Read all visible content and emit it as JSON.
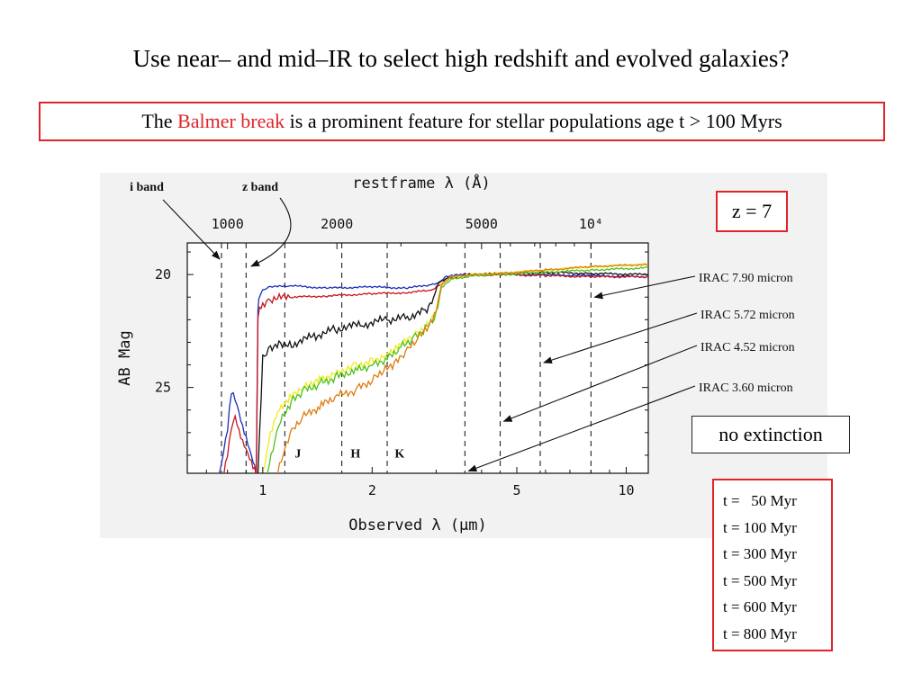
{
  "slide": {
    "title": "Use near– and mid–IR to select high redshift and evolved galaxies?",
    "balmer": {
      "prefix": "The ",
      "highlight": "Balmer break",
      "suffix": " is a prominent feature for stellar populations age t > 100 Myrs"
    },
    "redshift_label": "z = 7",
    "extinction_label": "no extinction",
    "age_legend": [
      "t =   50 Myr",
      "t = 100 Myr",
      "t = 300 Myr",
      "t = 500 Myr",
      "t = 600 Myr",
      "t = 800 Myr"
    ]
  },
  "colors": {
    "accent_red": "#e0242a",
    "panel_bg": "#f2f2f2"
  },
  "chart_data": {
    "type": "line",
    "title": "",
    "xlabel": "Observed λ (μm)",
    "ylabel": "AB Mag",
    "top_axis_label": "restframe λ (Å)",
    "xscale": "log",
    "xlim": [
      0.62,
      11.5
    ],
    "ylim": [
      28.8,
      18.6
    ],
    "x_ticks": [
      1,
      2,
      5,
      10
    ],
    "x_tick_labels": [
      "1",
      "2",
      "5",
      "10"
    ],
    "y_ticks": [
      20,
      25
    ],
    "y_tick_labels": [
      "20",
      "25"
    ],
    "top_ticks_angstrom": [
      1000,
      2000,
      5000,
      10000
    ],
    "top_tick_labels": [
      "1000",
      "2000",
      "5000",
      "10⁴"
    ],
    "redshift": 7,
    "band_lines_um": [
      0.77,
      0.9,
      1.15,
      1.65,
      2.2,
      3.6,
      4.5,
      5.8,
      8.0
    ],
    "band_letters": [
      {
        "label": "J",
        "x_um": 1.25,
        "y_mag": 27.9
      },
      {
        "label": "H",
        "x_um": 1.8,
        "y_mag": 27.9
      },
      {
        "label": "K",
        "x_um": 2.38,
        "y_mag": 27.9
      }
    ],
    "band_annotations": [
      {
        "label": "i band",
        "target_x_um": 0.77
      },
      {
        "label": "z band",
        "target_x_um": 0.9
      }
    ],
    "irac_annotations": [
      {
        "label": "IRAC 7.90 micron",
        "x_um": 8.0
      },
      {
        "label": "IRAC 5.72 micron",
        "x_um": 5.8
      },
      {
        "label": "IRAC 4.52 micron",
        "x_um": 4.5
      },
      {
        "label": "IRAC 3.60 micron",
        "x_um": 3.6
      }
    ],
    "series": [
      {
        "name": "t = 50 Myr",
        "color": "#1a2fb8",
        "x": [
          0.76,
          0.78,
          0.8,
          0.82,
          0.84,
          0.86,
          0.88,
          0.9,
          0.92,
          0.94,
          0.96,
          0.97,
          0.98,
          1.0,
          1.05,
          1.2,
          1.5,
          2.0,
          2.5,
          2.9,
          3.05,
          3.2,
          3.5,
          4.5,
          6,
          8,
          11.5
        ],
        "y": [
          28.8,
          27.8,
          26.8,
          25.2,
          25.6,
          26.2,
          26.8,
          27.2,
          27.7,
          28.2,
          28.8,
          21.5,
          21.0,
          20.7,
          20.55,
          20.5,
          20.6,
          20.55,
          20.6,
          20.45,
          20.4,
          20.1,
          20.0,
          20.0,
          20.0,
          20.05,
          20.1
        ]
      },
      {
        "name": "t = 100 Myr",
        "color": "#c8141e",
        "x": [
          0.78,
          0.8,
          0.82,
          0.84,
          0.86,
          0.88,
          0.9,
          0.92,
          0.94,
          0.96,
          0.97,
          0.98,
          1.0,
          1.05,
          1.2,
          1.5,
          2.0,
          2.5,
          2.9,
          3.05,
          3.2,
          3.5,
          4.5,
          6,
          8,
          11.5
        ],
        "y": [
          28.8,
          27.9,
          26.8,
          26.3,
          26.9,
          27.3,
          27.6,
          28.0,
          28.4,
          28.8,
          21.9,
          21.5,
          21.3,
          21.1,
          21.0,
          20.95,
          20.85,
          20.8,
          20.7,
          20.5,
          20.2,
          20.05,
          20.0,
          20.05,
          20.1,
          20.1
        ]
      },
      {
        "name": "t = 300 Myr",
        "color": "#111111",
        "x": [
          0.97,
          1.0,
          1.05,
          1.12,
          1.2,
          1.4,
          1.6,
          1.9,
          2.2,
          2.5,
          2.8,
          2.95,
          3.05,
          3.3,
          3.8,
          4.5,
          6,
          8,
          11.5
        ],
        "y": [
          28.8,
          23.6,
          23.2,
          23.0,
          23.1,
          22.7,
          22.4,
          22.2,
          22.0,
          21.9,
          21.6,
          21.0,
          20.3,
          20.1,
          20.0,
          19.95,
          19.9,
          19.95,
          20.0
        ]
      },
      {
        "name": "t = 500 Myr",
        "color": "#f0ea1a",
        "x": [
          1.0,
          1.05,
          1.1,
          1.2,
          1.3,
          1.45,
          1.6,
          1.8,
          2.0,
          2.2,
          2.4,
          2.6,
          2.8,
          3.0,
          3.1,
          3.3,
          3.8,
          4.5,
          6,
          8,
          11.5
        ],
        "y": [
          28.8,
          27.0,
          26.0,
          25.3,
          24.9,
          24.6,
          24.3,
          24.0,
          23.8,
          23.5,
          23.0,
          22.6,
          22.3,
          21.6,
          20.4,
          20.1,
          20.0,
          19.95,
          19.8,
          19.65,
          19.55
        ]
      },
      {
        "name": "t = 600 Myr",
        "color": "#4cc21a",
        "x": [
          1.03,
          1.08,
          1.12,
          1.2,
          1.3,
          1.45,
          1.6,
          1.8,
          2.0,
          2.2,
          2.4,
          2.6,
          2.8,
          3.0,
          3.1,
          3.3,
          3.8,
          4.5,
          6,
          8,
          11.5
        ],
        "y": [
          28.8,
          27.3,
          26.5,
          25.6,
          25.1,
          24.8,
          24.5,
          24.2,
          24.0,
          23.7,
          23.2,
          22.8,
          22.4,
          21.8,
          20.6,
          20.2,
          20.05,
          20.0,
          19.9,
          19.8,
          19.7
        ]
      },
      {
        "name": "t = 800 Myr",
        "color": "#e07b10",
        "x": [
          1.1,
          1.15,
          1.2,
          1.3,
          1.45,
          1.6,
          1.8,
          2.0,
          2.15,
          2.3,
          2.5,
          2.7,
          2.9,
          3.0,
          3.1,
          3.3,
          3.8,
          4.5,
          6,
          8,
          11.5
        ],
        "y": [
          28.8,
          27.8,
          27.0,
          26.3,
          25.8,
          25.4,
          25.1,
          24.7,
          24.3,
          24.0,
          23.4,
          22.8,
          22.2,
          21.7,
          20.5,
          20.1,
          20.0,
          19.95,
          19.8,
          19.65,
          19.55
        ]
      }
    ]
  }
}
